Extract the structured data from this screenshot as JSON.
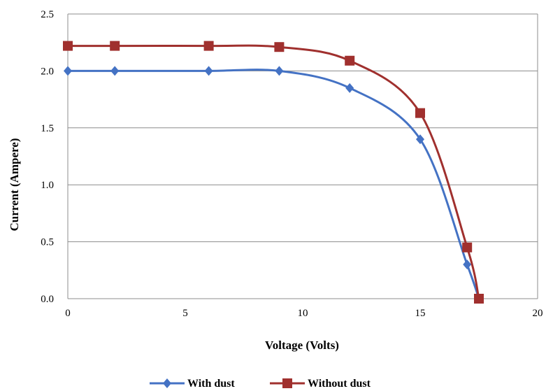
{
  "chart_data": {
    "type": "line",
    "xlabel": "Voltage (Volts)",
    "ylabel": "Current (Ampere)",
    "xlim": [
      0,
      20
    ],
    "ylim": [
      0,
      2.5
    ],
    "xticks": [
      0,
      5,
      10,
      15,
      20
    ],
    "yticks": [
      0.0,
      0.5,
      1.0,
      1.5,
      2.0,
      2.5
    ],
    "xtick_labels": [
      "0",
      "5",
      "10",
      "15",
      "20"
    ],
    "ytick_labels": [
      "0.0",
      "0.5",
      "1.0",
      "1.5",
      "2.0",
      "2.5"
    ],
    "grid": "horizontal",
    "legend_position": "bottom",
    "smooth": true,
    "series": [
      {
        "name": "With dust",
        "color": "#4472C4",
        "marker": "diamond",
        "x": [
          0,
          2,
          6,
          9,
          12,
          15,
          17,
          17.5
        ],
        "y": [
          2.0,
          2.0,
          2.0,
          2.0,
          1.85,
          1.4,
          0.3,
          0.0
        ]
      },
      {
        "name": "Without dust",
        "color": "#A0302E",
        "marker": "square",
        "x": [
          0,
          2,
          6,
          9,
          12,
          15,
          17,
          17.5
        ],
        "y": [
          2.22,
          2.22,
          2.22,
          2.21,
          2.09,
          1.63,
          0.45,
          0.0
        ]
      }
    ]
  }
}
